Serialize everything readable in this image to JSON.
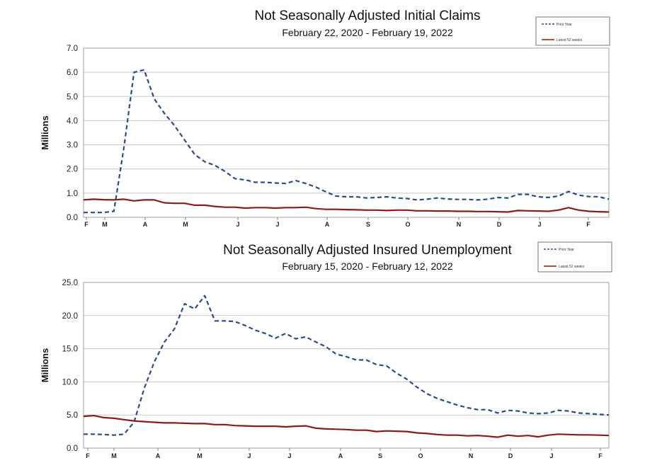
{
  "chart_data": [
    {
      "type": "line",
      "title": "Not Seasonally Adjusted Initial Claims",
      "subtitle": "February 22, 2020  -  February 19, 2022",
      "ylabel": "Millions",
      "ylim": [
        0,
        7.0
      ],
      "yticks": [
        "0.0",
        "1.0",
        "2.0",
        "3.0",
        "4.0",
        "5.0",
        "6.0",
        "7.0"
      ],
      "xtick_labels": [
        "F",
        "M",
        "A",
        "M",
        "J",
        "J",
        "A",
        "S",
        "O",
        "N",
        "D",
        "J",
        "F"
      ],
      "x": [
        0,
        1,
        2,
        3,
        4,
        5,
        6,
        7,
        8,
        9,
        10,
        11,
        12,
        13,
        14,
        15,
        16,
        17,
        18,
        19,
        20,
        21,
        22,
        23,
        24,
        25,
        26,
        27,
        28,
        29,
        30,
        31,
        32,
        33,
        34,
        35,
        36,
        37,
        38,
        39,
        40,
        41,
        42,
        43,
        44,
        45,
        46,
        47,
        48,
        49,
        50,
        51,
        52
      ],
      "grid": true,
      "legend_position": "top-right",
      "series": [
        {
          "name": "Prior Year",
          "color": "#2a4b8d",
          "style": "dashed",
          "values": [
            0.2,
            0.2,
            0.2,
            0.25,
            2.9,
            6.0,
            6.1,
            4.9,
            4.3,
            3.8,
            3.2,
            2.6,
            2.3,
            2.15,
            1.9,
            1.6,
            1.55,
            1.45,
            1.45,
            1.42,
            1.4,
            1.52,
            1.4,
            1.25,
            1.05,
            0.88,
            0.85,
            0.85,
            0.8,
            0.82,
            0.85,
            0.8,
            0.78,
            0.72,
            0.75,
            0.8,
            0.76,
            0.74,
            0.74,
            0.72,
            0.75,
            0.82,
            0.8,
            0.95,
            0.95,
            0.85,
            0.82,
            0.88,
            1.07,
            0.92,
            0.86,
            0.85,
            0.75
          ]
        },
        {
          "name": "Latest 52 weeks",
          "color": "#8b1a1a",
          "style": "solid",
          "values": [
            0.72,
            0.75,
            0.73,
            0.72,
            0.75,
            0.68,
            0.72,
            0.72,
            0.6,
            0.58,
            0.58,
            0.5,
            0.5,
            0.45,
            0.42,
            0.42,
            0.38,
            0.4,
            0.4,
            0.38,
            0.4,
            0.4,
            0.42,
            0.36,
            0.33,
            0.33,
            0.32,
            0.31,
            0.3,
            0.3,
            0.28,
            0.3,
            0.3,
            0.27,
            0.27,
            0.26,
            0.26,
            0.25,
            0.25,
            0.24,
            0.24,
            0.23,
            0.22,
            0.28,
            0.27,
            0.26,
            0.25,
            0.3,
            0.4,
            0.3,
            0.25,
            0.23,
            0.22
          ]
        }
      ]
    },
    {
      "type": "line",
      "title": "Not Seasonally Adjusted Insured Unemployment",
      "subtitle": "February 15, 2020 - February 12, 2022",
      "ylabel": "Millions",
      "ylim": [
        0,
        25.0
      ],
      "yticks": [
        "0.0",
        "5.0",
        "10.0",
        "15.0",
        "20.0",
        "25.0"
      ],
      "xtick_labels": [
        "F",
        "M",
        "A",
        "M",
        "J",
        "J",
        "A",
        "S",
        "O",
        "N",
        "D",
        "J",
        "F"
      ],
      "x": [
        0,
        1,
        2,
        3,
        4,
        5,
        6,
        7,
        8,
        9,
        10,
        11,
        12,
        13,
        14,
        15,
        16,
        17,
        18,
        19,
        20,
        21,
        22,
        23,
        24,
        25,
        26,
        27,
        28,
        29,
        30,
        31,
        32,
        33,
        34,
        35,
        36,
        37,
        38,
        39,
        40,
        41,
        42,
        43,
        44,
        45,
        46,
        47,
        48,
        49,
        50,
        51,
        52
      ],
      "grid": true,
      "legend_position": "top-right",
      "series": [
        {
          "name": "Prior Year",
          "color": "#2a4b8d",
          "style": "dashed",
          "values": [
            2.1,
            2.1,
            2.05,
            1.95,
            2.1,
            3.9,
            9.0,
            13.0,
            16.0,
            18.0,
            21.8,
            21.0,
            23.0,
            19.2,
            19.2,
            19.1,
            18.5,
            17.8,
            17.3,
            16.6,
            17.3,
            16.5,
            16.8,
            16.0,
            15.3,
            14.2,
            13.8,
            13.3,
            13.3,
            12.6,
            12.4,
            11.3,
            10.4,
            9.2,
            8.2,
            7.5,
            7.0,
            6.5,
            6.1,
            5.8,
            5.8,
            5.3,
            5.7,
            5.6,
            5.3,
            5.2,
            5.3,
            5.7,
            5.6,
            5.3,
            5.2,
            5.1,
            5.0
          ]
        },
        {
          "name": "Latest 52 weeks",
          "color": "#8b1a1a",
          "style": "solid",
          "values": [
            4.8,
            4.9,
            4.6,
            4.5,
            4.3,
            4.1,
            4.0,
            3.9,
            3.8,
            3.8,
            3.75,
            3.7,
            3.7,
            3.55,
            3.55,
            3.4,
            3.35,
            3.3,
            3.3,
            3.3,
            3.2,
            3.3,
            3.35,
            3.0,
            2.9,
            2.85,
            2.8,
            2.7,
            2.7,
            2.5,
            2.6,
            2.55,
            2.5,
            2.3,
            2.2,
            2.05,
            1.95,
            1.95,
            1.85,
            1.9,
            1.8,
            1.65,
            1.95,
            1.8,
            1.9,
            1.7,
            1.95,
            2.1,
            2.05,
            2.0,
            2.0,
            1.95,
            1.9
          ]
        }
      ]
    }
  ]
}
